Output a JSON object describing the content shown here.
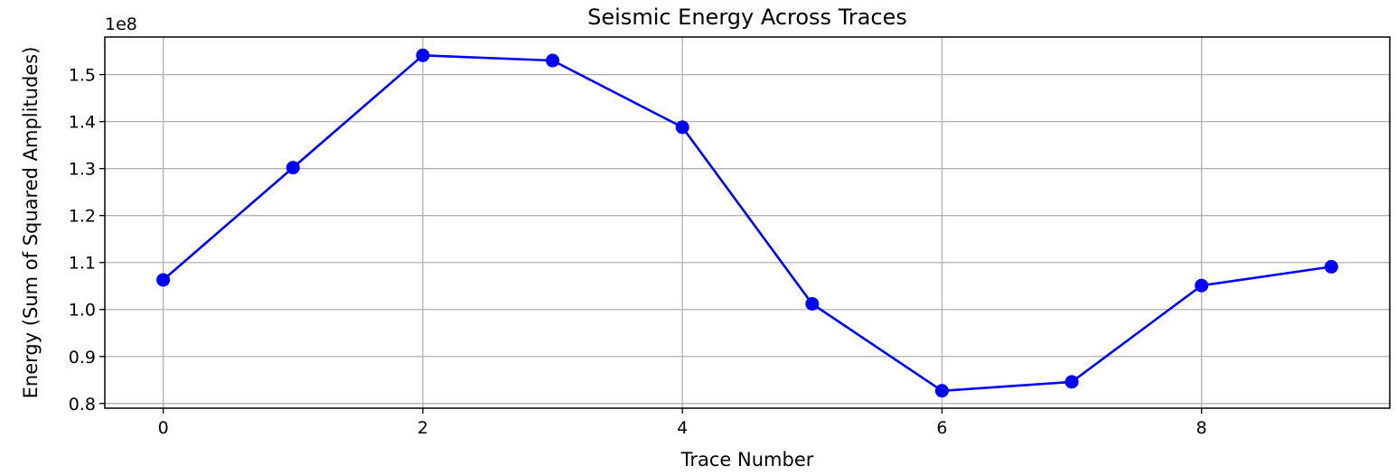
{
  "chart_data": {
    "type": "line",
    "title": "Seismic Energy Across Traces",
    "xlabel": "Trace Number",
    "ylabel": "Energy (Sum of Squared Amplitudes)",
    "y_offset_label": "1e8",
    "y_scale_multiplier": 100000000,
    "xlim": [
      -0.45,
      9.45
    ],
    "ylim": [
      0.79,
      1.58
    ],
    "xticks": [
      0,
      2,
      4,
      6,
      8
    ],
    "xtick_labels": [
      "0",
      "2",
      "4",
      "6",
      "8"
    ],
    "yticks": [
      0.8,
      0.9,
      1.0,
      1.1,
      1.2,
      1.3,
      1.4,
      1.5
    ],
    "ytick_labels": [
      "0.8",
      "0.9",
      "1.0",
      "1.1",
      "1.2",
      "1.3",
      "1.4",
      "1.5"
    ],
    "grid": true,
    "series": [
      {
        "color": "#0000ff",
        "marker": "circle",
        "x": [
          0,
          1,
          2,
          3,
          4,
          5,
          6,
          7,
          8,
          9
        ],
        "y": [
          1.063,
          1.302,
          1.541,
          1.53,
          1.388,
          1.012,
          0.827,
          0.846,
          1.051,
          1.091
        ]
      }
    ]
  }
}
